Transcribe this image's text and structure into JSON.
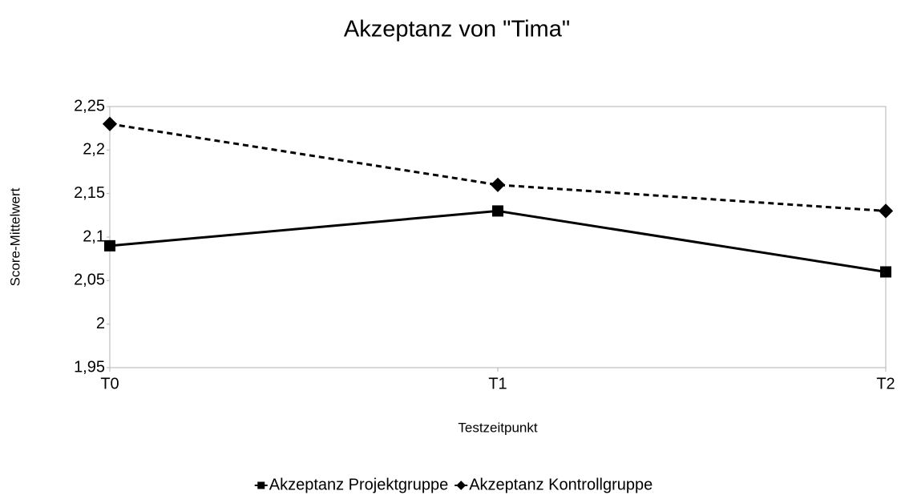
{
  "chart_data": {
    "type": "line",
    "title": "Akzeptanz von \"Tima\"",
    "x_label": "Testzeitpunkt",
    "y_label": "Score-Mittelwert",
    "categories": [
      "T0",
      "T1",
      "T2"
    ],
    "series": [
      {
        "name": "Akzeptanz Projektgruppe",
        "color": "#000000",
        "line_style": "solid",
        "marker": "square",
        "values": [
          2.09,
          2.13,
          2.06
        ]
      },
      {
        "name": "Akzeptanz Kontrollgruppe",
        "color": "#000000",
        "line_style": "dashed",
        "marker": "diamond",
        "values": [
          2.23,
          2.16,
          2.13
        ]
      }
    ],
    "ylim": [
      1.95,
      2.25
    ],
    "yticks": [
      {
        "value": 1.95,
        "label": "1,95"
      },
      2,
      {
        "value": 2.05,
        "label": "2,05"
      },
      {
        "value": 2.1,
        "label": "2,1"
      },
      {
        "value": 2.15,
        "label": "2,15"
      },
      {
        "value": 2.2,
        "label": "2,2"
      },
      {
        "value": 2.25,
        "label": "2,25"
      }
    ],
    "grid": false,
    "legend": "bottom"
  }
}
